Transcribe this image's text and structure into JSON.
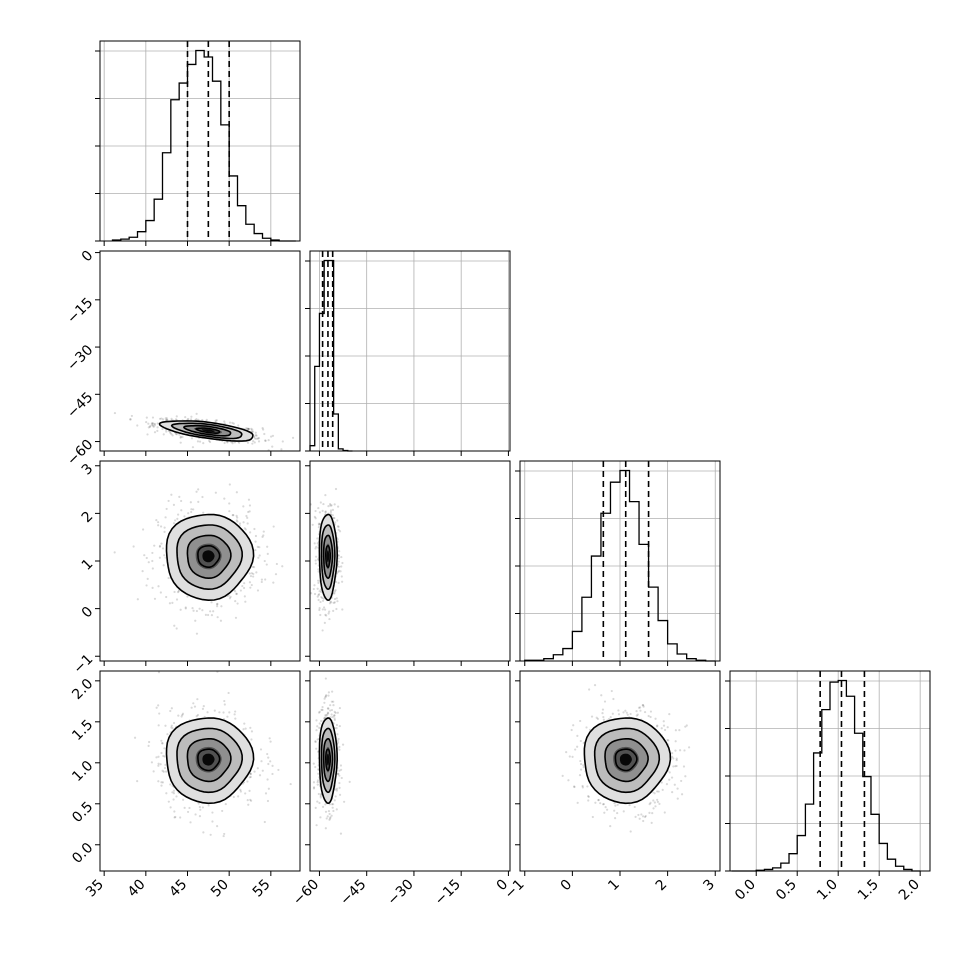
{
  "chart_data": {
    "type": "corner",
    "parameters": [
      {
        "ticks": [
          35,
          40,
          45,
          50,
          55
        ],
        "range": [
          34.5,
          58.5
        ],
        "quantiles": [
          45,
          47.5,
          50
        ]
      },
      {
        "ticks": [
          -60,
          -45,
          -30,
          -15,
          0
        ],
        "range": [
          -63,
          0.5
        ],
        "quantiles": [
          -59,
          -57.3,
          -55.8
        ]
      },
      {
        "ticks": [
          -1,
          0,
          1,
          2,
          3
        ],
        "range": [
          -1.1,
          3.1
        ],
        "quantiles": [
          0.65,
          1.12,
          1.6
        ]
      },
      {
        "ticks": [
          0.0,
          0.5,
          1.0,
          1.5,
          2.0
        ],
        "range": [
          -0.32,
          2.12
        ],
        "quantiles": [
          0.78,
          1.04,
          1.32
        ]
      }
    ],
    "tick_labels": {
      "p0": [
        "35",
        "40",
        "45",
        "50",
        "55"
      ],
      "p1": [
        "−60",
        "−45",
        "−30",
        "−15",
        "0"
      ],
      "p2": [
        "−1",
        "0",
        "1",
        "2",
        "3"
      ],
      "p3": [
        "0.0",
        "0.5",
        "1.0",
        "1.5",
        "2.0"
      ]
    },
    "histograms": [
      {
        "param": 0,
        "bin_edges": [
          36,
          37,
          38,
          39,
          40,
          41,
          42,
          43,
          44,
          45,
          46,
          47,
          48,
          49,
          50,
          51,
          52,
          53,
          54,
          55,
          56,
          57,
          58
        ],
        "counts": [
          1,
          2,
          4,
          10,
          22,
          45,
          95,
          152,
          170,
          190,
          205,
          198,
          172,
          125,
          70,
          38,
          18,
          8,
          3,
          1,
          0,
          0
        ]
      },
      {
        "param": 1,
        "bin_edges": [
          -63,
          -61.5,
          -60,
          -58.5,
          -57,
          -55.5,
          -54,
          -52.5,
          -51,
          -49.5
        ],
        "counts": [
          10,
          160,
          260,
          360,
          360,
          70,
          4,
          1,
          0
        ]
      },
      {
        "param": 2,
        "bin_edges": [
          -1,
          -0.8,
          -0.6,
          -0.4,
          -0.2,
          0,
          0.2,
          0.4,
          0.6,
          0.8,
          1.0,
          1.2,
          1.4,
          1.6,
          1.8,
          2.0,
          2.2,
          2.4,
          2.6,
          2.8,
          3.0
        ],
        "counts": [
          1,
          1,
          3,
          8,
          16,
          38,
          82,
          135,
          190,
          230,
          245,
          205,
          150,
          95,
          52,
          22,
          9,
          3,
          1,
          0
        ]
      },
      {
        "param": 3,
        "bin_edges": [
          -0.3,
          -0.2,
          -0.1,
          0,
          0.1,
          0.2,
          0.3,
          0.4,
          0.5,
          0.6,
          0.7,
          0.8,
          0.9,
          1.0,
          1.1,
          1.2,
          1.3,
          1.4,
          1.5,
          1.6,
          1.7,
          1.8,
          1.9,
          2.0
        ],
        "counts": [
          0,
          0,
          0,
          1,
          2,
          4,
          10,
          22,
          45,
          85,
          150,
          205,
          240,
          242,
          222,
          175,
          120,
          72,
          35,
          15,
          6,
          2,
          0
        ]
      }
    ],
    "pairs": [
      {
        "x_param": 0,
        "y_param": 1,
        "center": [
          47.5,
          -56.5
        ],
        "sigma": [
          2.8,
          1.6
        ],
        "rho": -0.6
      },
      {
        "x_param": 0,
        "y_param": 2,
        "center": [
          47.5,
          1.1
        ],
        "sigma": [
          2.6,
          0.45
        ],
        "rho": 0.0
      },
      {
        "x_param": 1,
        "y_param": 2,
        "center": [
          -57.3,
          1.1
        ],
        "sigma": [
          1.4,
          0.45
        ],
        "rho": 0.0
      },
      {
        "x_param": 0,
        "y_param": 3,
        "center": [
          47.5,
          1.04
        ],
        "sigma": [
          2.6,
          0.26
        ],
        "rho": 0.0
      },
      {
        "x_param": 1,
        "y_param": 3,
        "center": [
          -57.3,
          1.04
        ],
        "sigma": [
          1.4,
          0.26
        ],
        "rho": 0.0
      },
      {
        "x_param": 2,
        "y_param": 3,
        "center": [
          1.12,
          1.04
        ],
        "sigma": [
          0.45,
          0.26
        ],
        "rho": 0.0
      }
    ],
    "contour_levels": [
      0.5,
      1.0,
      1.5,
      2.0
    ],
    "grid": true,
    "legend": "none",
    "title": "",
    "xlabel": "",
    "ylabel": ""
  }
}
